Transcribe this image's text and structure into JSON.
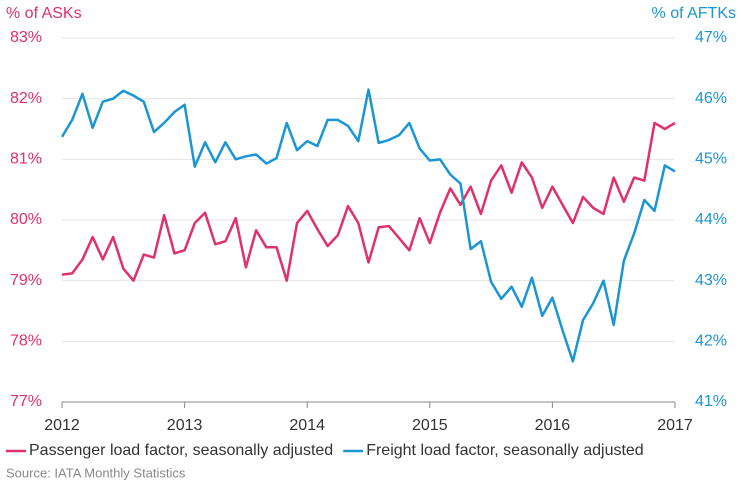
{
  "chart_data": {
    "type": "line",
    "y_axis_label": "% of ASKs",
    "y2_axis_label": "% of AFTKs",
    "source": "Source: IATA Monthly Statistics",
    "x": [
      2012,
      2012.083,
      2012.167,
      2012.25,
      2012.333,
      2012.417,
      2012.5,
      2012.583,
      2012.667,
      2012.75,
      2012.833,
      2012.917,
      2013,
      2013.083,
      2013.167,
      2013.25,
      2013.333,
      2013.417,
      2013.5,
      2013.583,
      2013.667,
      2013.75,
      2013.833,
      2013.917,
      2014,
      2014.083,
      2014.167,
      2014.25,
      2014.333,
      2014.417,
      2014.5,
      2014.583,
      2014.667,
      2014.75,
      2014.833,
      2014.917,
      2015,
      2015.083,
      2015.167,
      2015.25,
      2015.333,
      2015.417,
      2015.5,
      2015.583,
      2015.667,
      2015.75,
      2015.833,
      2015.917,
      2016,
      2016.083,
      2016.167,
      2016.25,
      2016.333,
      2016.417,
      2016.5,
      2016.583,
      2016.667,
      2016.75,
      2016.833,
      2016.917,
      2017
    ],
    "series": [
      {
        "name": "Passenger load factor, seasonally adjusted",
        "color": "#e0306e",
        "axis": "y",
        "values": [
          79.1,
          79.12,
          79.35,
          79.72,
          79.35,
          79.72,
          79.2,
          79.0,
          79.43,
          79.38,
          80.08,
          79.45,
          79.5,
          79.95,
          80.12,
          79.6,
          79.65,
          80.03,
          79.22,
          79.83,
          79.55,
          79.55,
          79.0,
          79.95,
          80.15,
          79.85,
          79.57,
          79.75,
          80.23,
          79.95,
          79.3,
          79.88,
          79.9,
          79.7,
          79.5,
          80.03,
          79.62,
          80.12,
          80.52,
          80.25,
          80.55,
          80.1,
          80.65,
          80.9,
          80.45,
          80.95,
          80.7,
          80.2,
          80.55,
          80.25,
          79.95,
          80.38,
          80.2,
          80.1,
          80.7,
          80.3,
          80.7,
          80.65,
          81.6,
          81.5,
          81.6
        ]
      },
      {
        "name": "Freight load factor, seasonally adjusted",
        "color": "#1a96d4",
        "axis": "y2",
        "values": [
          45.37,
          45.65,
          46.08,
          45.52,
          45.95,
          46.0,
          46.13,
          46.05,
          45.95,
          45.45,
          45.6,
          45.78,
          45.9,
          44.88,
          45.28,
          44.95,
          45.28,
          45.0,
          45.05,
          45.08,
          44.93,
          45.02,
          45.6,
          45.15,
          45.3,
          45.22,
          45.65,
          45.65,
          45.55,
          45.3,
          46.15,
          45.27,
          45.32,
          45.4,
          45.6,
          45.18,
          44.98,
          45.0,
          44.75,
          44.6,
          43.52,
          43.65,
          42.98,
          42.7,
          42.9,
          42.57,
          43.05,
          42.42,
          42.72,
          42.18,
          41.67,
          42.35,
          42.63,
          43.0,
          42.27,
          43.33,
          43.78,
          44.33,
          44.15,
          44.9,
          44.8
        ]
      }
    ],
    "xlim": [
      2012,
      2017
    ],
    "xticks": [
      2012,
      2013,
      2014,
      2015,
      2016,
      2017
    ],
    "ylim": [
      77,
      83
    ],
    "yticks": [
      {
        "value": 77,
        "label": "77%"
      },
      {
        "value": 78,
        "label": "78%"
      },
      {
        "value": 79,
        "label": "79%"
      },
      {
        "value": 80,
        "label": "80%"
      },
      {
        "value": 81,
        "label": "81%"
      },
      {
        "value": 82,
        "label": "82%"
      },
      {
        "value": 83,
        "label": "83%"
      }
    ],
    "y2lim": [
      41,
      47
    ],
    "y2ticks": [
      {
        "value": 41,
        "label": "41%"
      },
      {
        "value": 42,
        "label": "42%"
      },
      {
        "value": 43,
        "label": "43%"
      },
      {
        "value": 44,
        "label": "44%"
      },
      {
        "value": 45,
        "label": "45%"
      },
      {
        "value": 46,
        "label": "46%"
      },
      {
        "value": 47,
        "label": "47%"
      }
    ],
    "grid": true,
    "legend": "bottom"
  }
}
